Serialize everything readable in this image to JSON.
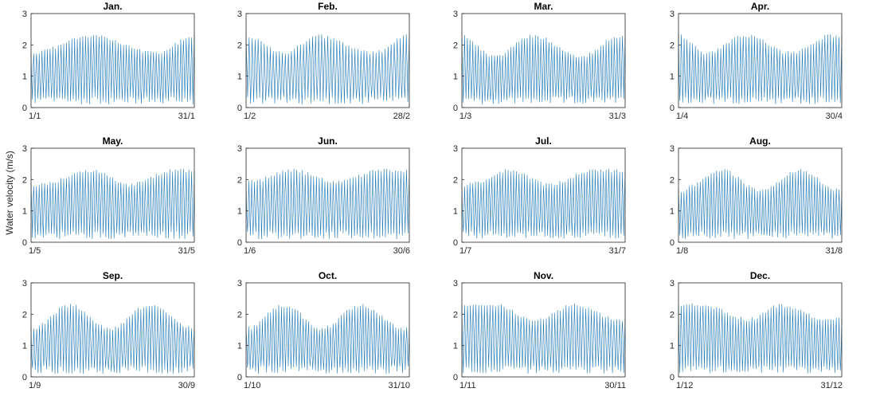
{
  "figure": {
    "ylabel": "Water velocity (m/s)",
    "line_color": "#1f77b4",
    "axis_color": "#262626"
  },
  "chart_data": [
    {
      "type": "line",
      "title": "Jan.",
      "xlabel": "",
      "ylabel": "",
      "x_ticks": [
        "1/1",
        "31/1"
      ],
      "ylim": [
        0,
        3
      ],
      "y_ticks": [
        0,
        1,
        2,
        3
      ],
      "days": 31,
      "grid": false,
      "series": [
        {
          "envelope_peak_days": [
            12,
            31
          ],
          "envelope_trough_days": [
            1,
            24
          ],
          "spring_max": 2.4,
          "neap_max": 1.8,
          "min": 0.1
        }
      ]
    },
    {
      "type": "line",
      "title": "Feb.",
      "xlabel": "",
      "ylabel": "",
      "x_ticks": [
        "1/2",
        "28/2"
      ],
      "ylim": [
        0,
        3
      ],
      "y_ticks": [
        0,
        1,
        2,
        3
      ],
      "days": 28,
      "grid": false,
      "series": [
        {
          "envelope_peak_days": [
            1,
            13,
            28
          ],
          "envelope_trough_days": [
            7,
            22
          ],
          "spring_max": 2.4,
          "neap_max": 1.8,
          "min": 0.1
        }
      ]
    },
    {
      "type": "line",
      "title": "Mar.",
      "xlabel": "",
      "ylabel": "",
      "x_ticks": [
        "1/3",
        "31/3"
      ],
      "ylim": [
        0,
        3
      ],
      "y_ticks": [
        0,
        1,
        2,
        3
      ],
      "days": 31,
      "grid": false,
      "series": [
        {
          "envelope_peak_days": [
            1,
            14,
            30
          ],
          "envelope_trough_days": [
            7,
            23
          ],
          "spring_max": 2.4,
          "neap_max": 1.7,
          "min": 0.1
        }
      ]
    },
    {
      "type": "line",
      "title": "Apr.",
      "xlabel": "",
      "ylabel": "",
      "x_ticks": [
        "1/4",
        "30/4"
      ],
      "ylim": [
        0,
        3
      ],
      "y_ticks": [
        0,
        1,
        2,
        3
      ],
      "days": 30,
      "grid": false,
      "series": [
        {
          "envelope_peak_days": [
            1,
            13,
            28
          ],
          "envelope_trough_days": [
            6,
            21
          ],
          "spring_max": 2.4,
          "neap_max": 1.8,
          "min": 0.1
        }
      ]
    },
    {
      "type": "line",
      "title": "May.",
      "xlabel": "",
      "ylabel": "",
      "x_ticks": [
        "1/5",
        "31/5"
      ],
      "ylim": [
        0,
        3
      ],
      "y_ticks": [
        0,
        1,
        2,
        3
      ],
      "days": 31,
      "grid": false,
      "series": [
        {
          "envelope_peak_days": [
            12,
            27
          ],
          "envelope_trough_days": [
            3,
            19
          ],
          "spring_max": 2.4,
          "neap_max": 1.9,
          "min": 0.1
        }
      ]
    },
    {
      "type": "line",
      "title": "Jun.",
      "xlabel": "",
      "ylabel": "",
      "x_ticks": [
        "1/6",
        "30/6"
      ],
      "ylim": [
        0,
        3
      ],
      "y_ticks": [
        0,
        1,
        2,
        3
      ],
      "days": 30,
      "grid": false,
      "series": [
        {
          "envelope_peak_days": [
            9,
            25
          ],
          "envelope_trough_days": [
            2,
            17
          ],
          "spring_max": 2.4,
          "neap_max": 2.0,
          "min": 0.1
        }
      ]
    },
    {
      "type": "line",
      "title": "Jul.",
      "xlabel": "",
      "ylabel": "",
      "x_ticks": [
        "1/7",
        "31/7"
      ],
      "ylim": [
        0,
        3
      ],
      "y_ticks": [
        0,
        1,
        2,
        3
      ],
      "days": 31,
      "grid": false,
      "series": [
        {
          "envelope_peak_days": [
            10,
            25
          ],
          "envelope_trough_days": [
            2,
            17
          ],
          "spring_max": 2.4,
          "neap_max": 1.9,
          "min": 0.1
        }
      ]
    },
    {
      "type": "line",
      "title": "Aug.",
      "xlabel": "",
      "ylabel": "",
      "x_ticks": [
        "1/8",
        "31/8"
      ],
      "ylim": [
        0,
        3
      ],
      "y_ticks": [
        0,
        1,
        2,
        3
      ],
      "days": 31,
      "grid": false,
      "series": [
        {
          "envelope_peak_days": [
            9,
            23
          ],
          "envelope_trough_days": [
            1,
            16,
            31
          ],
          "spring_max": 2.4,
          "neap_max": 1.7,
          "min": 0.1
        }
      ]
    },
    {
      "type": "line",
      "title": "Sep.",
      "xlabel": "",
      "ylabel": "",
      "x_ticks": [
        "1/9",
        "30/9"
      ],
      "ylim": [
        0,
        3
      ],
      "y_ticks": [
        0,
        1,
        2,
        3
      ],
      "days": 30,
      "grid": false,
      "series": [
        {
          "envelope_peak_days": [
            8,
            22
          ],
          "envelope_trough_days": [
            1,
            15,
            30
          ],
          "spring_max": 2.4,
          "neap_max": 1.6,
          "min": 0.1
        }
      ]
    },
    {
      "type": "line",
      "title": "Oct.",
      "xlabel": "",
      "ylabel": "",
      "x_ticks": [
        "1/10",
        "31/10"
      ],
      "ylim": [
        0,
        3
      ],
      "y_ticks": [
        0,
        1,
        2,
        3
      ],
      "days": 31,
      "grid": false,
      "series": [
        {
          "envelope_peak_days": [
            8,
            22
          ],
          "envelope_trough_days": [
            1,
            15,
            30
          ],
          "spring_max": 2.4,
          "neap_max": 1.6,
          "min": 0.1
        }
      ]
    },
    {
      "type": "line",
      "title": "Nov.",
      "xlabel": "",
      "ylabel": "",
      "x_ticks": [
        "1/11",
        "30/11"
      ],
      "ylim": [
        0,
        3
      ],
      "y_ticks": [
        0,
        1,
        2,
        3
      ],
      "days": 30,
      "grid": false,
      "series": [
        {
          "envelope_peak_days": [
            7,
            21
          ],
          "envelope_trough_days": [
            14,
            29
          ],
          "spring_max": 2.4,
          "neap_max": 1.9,
          "min": 0.1
        }
      ]
    },
    {
      "type": "line",
      "title": "Dec.",
      "xlabel": "",
      "ylabel": "",
      "x_ticks": [
        "1/12",
        "31/12"
      ],
      "ylim": [
        0,
        3
      ],
      "y_ticks": [
        0,
        1,
        2,
        3
      ],
      "days": 31,
      "grid": false,
      "series": [
        {
          "envelope_peak_days": [
            5,
            20
          ],
          "envelope_trough_days": [
            14,
            28
          ],
          "spring_max": 2.4,
          "neap_max": 1.9,
          "min": 0.1
        }
      ]
    }
  ]
}
